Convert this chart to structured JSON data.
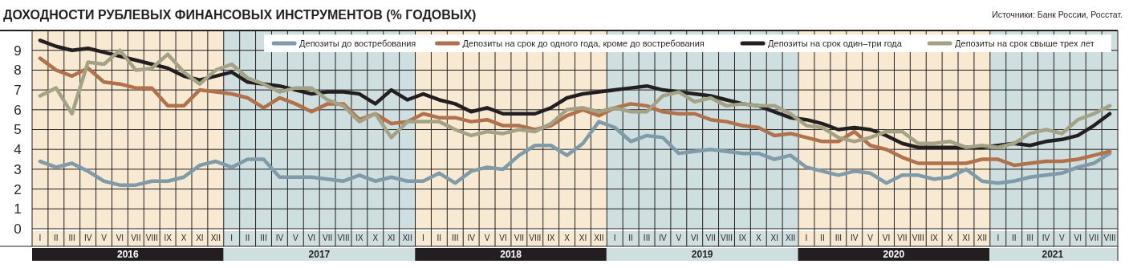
{
  "chart_data": {
    "type": "line",
    "title": "ДОХОДНОСТИ РУБЛЕВЫХ ФИНАНСОВЫХ ИНСТРУМЕНТОВ (% ГОДОВЫХ)",
    "annotations": [
      "Источники: Банк России, Росстат."
    ],
    "categories": [
      "I",
      "II",
      "III",
      "IV",
      "V",
      "VI",
      "VII",
      "VIII",
      "IX",
      "X",
      "XI",
      "XII",
      "I",
      "II",
      "III",
      "IV",
      "V",
      "VI",
      "VII",
      "VIII",
      "IX",
      "X",
      "XI",
      "XII",
      "I",
      "II",
      "III",
      "IV",
      "V",
      "VI",
      "VII",
      "VIII",
      "IX",
      "X",
      "XI",
      "XII",
      "I",
      "II",
      "III",
      "IV",
      "V",
      "VI",
      "VII",
      "VIII",
      "IX",
      "X",
      "XI",
      "XII",
      "I",
      "II",
      "III",
      "IV",
      "V",
      "VI",
      "VII",
      "VIII",
      "IX",
      "X",
      "XI",
      "XII",
      "I",
      "II",
      "III",
      "IV",
      "V",
      "VI",
      "VII",
      "VIII"
    ],
    "series": [
      {
        "name": "Депозиты до востребования",
        "color": "#7f9baa",
        "values": [
          3.4,
          3.1,
          3.3,
          2.9,
          2.4,
          2.2,
          2.2,
          2.4,
          2.4,
          2.6,
          3.2,
          3.4,
          3.1,
          3.5,
          3.5,
          2.6,
          2.6,
          2.6,
          2.5,
          2.4,
          2.7,
          2.4,
          2.6,
          2.4,
          2.4,
          2.8,
          2.3,
          2.9,
          3.1,
          3.0,
          3.7,
          4.2,
          4.2,
          3.7,
          4.3,
          5.4,
          5.1,
          4.4,
          4.7,
          4.6,
          3.8,
          3.9,
          4.0,
          3.9,
          3.8,
          3.8,
          3.5,
          3.7,
          3.1,
          2.9,
          2.7,
          2.9,
          2.8,
          2.3,
          2.7,
          2.7,
          2.5,
          2.6,
          3.0,
          2.4,
          2.3,
          2.4,
          2.6,
          2.7,
          2.8,
          3.1,
          3.3,
          3.8
        ]
      },
      {
        "name": "Депозиты на срок до одного года, кроме до востребования",
        "color": "#b0714b",
        "values": [
          8.6,
          8.0,
          7.7,
          8.1,
          7.4,
          7.3,
          7.1,
          7.1,
          6.2,
          6.2,
          7.0,
          6.9,
          6.8,
          6.6,
          6.1,
          6.6,
          6.3,
          5.9,
          6.3,
          6.3,
          5.5,
          5.8,
          5.3,
          5.4,
          5.8,
          5.6,
          5.6,
          5.4,
          5.5,
          5.2,
          5.2,
          5.0,
          5.2,
          5.7,
          6.0,
          5.7,
          6.1,
          6.3,
          6.2,
          5.9,
          5.8,
          5.8,
          5.5,
          5.4,
          5.2,
          5.1,
          4.7,
          4.8,
          4.6,
          4.4,
          4.4,
          4.9,
          4.2,
          4.0,
          3.6,
          3.3,
          3.3,
          3.3,
          3.3,
          3.5,
          3.5,
          3.2,
          3.3,
          3.4,
          3.4,
          3.5,
          3.7,
          3.9
        ]
      },
      {
        "name": "Депозиты на срок один–три года",
        "color": "#231f20",
        "values": [
          9.5,
          9.2,
          9.0,
          9.1,
          8.9,
          8.7,
          8.5,
          8.3,
          8.1,
          7.7,
          7.5,
          7.7,
          7.9,
          7.4,
          7.3,
          7.2,
          7.0,
          6.8,
          6.9,
          6.9,
          6.8,
          6.3,
          7.0,
          6.5,
          6.8,
          6.5,
          6.3,
          5.9,
          6.1,
          5.8,
          5.8,
          5.8,
          6.1,
          6.6,
          6.8,
          6.9,
          7.0,
          7.1,
          7.2,
          7.0,
          6.9,
          6.8,
          6.7,
          6.5,
          6.3,
          6.2,
          5.9,
          5.6,
          5.5,
          5.3,
          5.0,
          5.1,
          5.0,
          4.7,
          4.3,
          4.1,
          4.1,
          4.1,
          4.1,
          4.1,
          4.2,
          4.3,
          4.2,
          4.4,
          4.5,
          4.7,
          5.2,
          5.8
        ]
      },
      {
        "name": "Депозиты на срок свыше трех лет",
        "color": "#a3a285",
        "values": [
          6.7,
          7.1,
          5.8,
          8.4,
          8.3,
          9.0,
          8.0,
          8.1,
          8.8,
          7.9,
          7.3,
          8.0,
          8.3,
          7.6,
          7.3,
          6.9,
          7.1,
          7.1,
          6.5,
          6.2,
          5.4,
          5.8,
          4.6,
          5.4,
          5.4,
          5.4,
          5.0,
          4.7,
          4.9,
          4.8,
          5.0,
          4.9,
          5.3,
          6.0,
          6.1,
          5.9,
          6.1,
          5.9,
          5.9,
          6.7,
          6.9,
          6.4,
          6.6,
          6.2,
          6.3,
          6.2,
          6.2,
          5.8,
          5.2,
          5.1,
          4.6,
          4.4,
          4.6,
          4.9,
          4.9,
          4.3,
          4.3,
          4.4,
          4.1,
          4.2,
          4.1,
          4.3,
          4.8,
          5.0,
          4.8,
          5.5,
          5.8,
          6.2
        ]
      }
    ],
    "ylim": [
      0,
      10
    ],
    "yticks": [
      0,
      1,
      2,
      3,
      4,
      5,
      6,
      7,
      8,
      9
    ],
    "x2lim": [
      2016,
      2021.67
    ],
    "x2ticks": [
      {
        "value": 2016.5,
        "label": "2016"
      },
      {
        "value": 2017.5,
        "label": "2017"
      },
      {
        "value": 2018.5,
        "label": "2018"
      },
      {
        "value": 2019.5,
        "label": "2019"
      },
      {
        "value": 2020.5,
        "label": "2020"
      },
      {
        "value": 2021.33,
        "label": "2021"
      }
    ],
    "bands": [
      {
        "axis": "x2",
        "from": 2016,
        "to": 2017,
        "color": "#f8e9d2"
      },
      {
        "axis": "x2",
        "from": 2017,
        "to": 2018,
        "color": "#cfdfe0"
      },
      {
        "axis": "x2",
        "from": 2018,
        "to": 2019,
        "color": "#f8e9d2"
      },
      {
        "axis": "x2",
        "from": 2019,
        "to": 2020,
        "color": "#cfdfe0"
      },
      {
        "axis": "x2",
        "from": 2020,
        "to": 2021,
        "color": "#f8e9d2"
      },
      {
        "axis": "x2",
        "from": 2021,
        "to": 2021.67,
        "color": "#cfdfe0"
      }
    ],
    "grid": true,
    "legend": "top",
    "line_style": "solid",
    "marker": "none"
  }
}
